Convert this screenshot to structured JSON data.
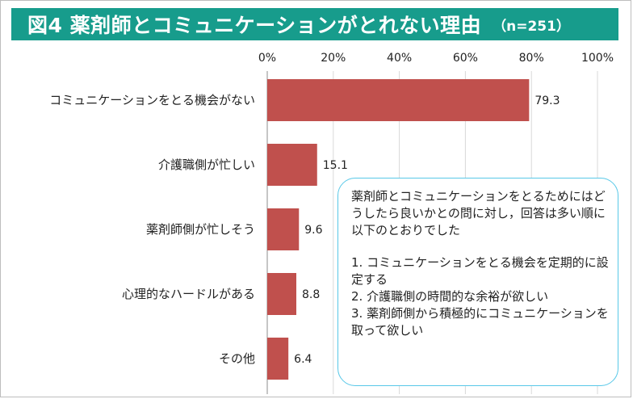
{
  "title": {
    "main": "図4 薬剤師とコミュニケーションがとれない理由",
    "sample": "（n=251）"
  },
  "chart_data": {
    "type": "bar",
    "orientation": "horizontal",
    "categories": [
      "コミュニケーションをとる機会がない",
      "介護職側が忙しい",
      "薬剤師側が忙しそう",
      "心理的なハードルがある",
      "その他"
    ],
    "values": [
      79.3,
      15.1,
      9.6,
      8.8,
      6.4
    ],
    "value_labels": [
      "79.3",
      "15.1",
      "9.6",
      "8.8",
      "6.4"
    ],
    "xlim": [
      0,
      100
    ],
    "ticks": [
      0,
      20,
      40,
      60,
      80,
      100
    ],
    "tick_labels": [
      "0%",
      "20%",
      "40%",
      "60%",
      "80%",
      "100%"
    ],
    "axis_position": "top",
    "grid": true,
    "bar_color": "#c0504d",
    "grid_color": "#d9d9d9"
  },
  "note": {
    "intro": "薬剤師とコミュニケーションをとるためにはどうしたら良いかとの問に対し，回答は多い順に以下のとおりでした",
    "items": [
      "1. コミュニケーションをとる機会を定期的に設定する",
      "2. 介護職側の時間的な余裕が欲しい",
      "3. 薬剤師側から積極的にコミュニケーションを取って欲しい"
    ]
  }
}
